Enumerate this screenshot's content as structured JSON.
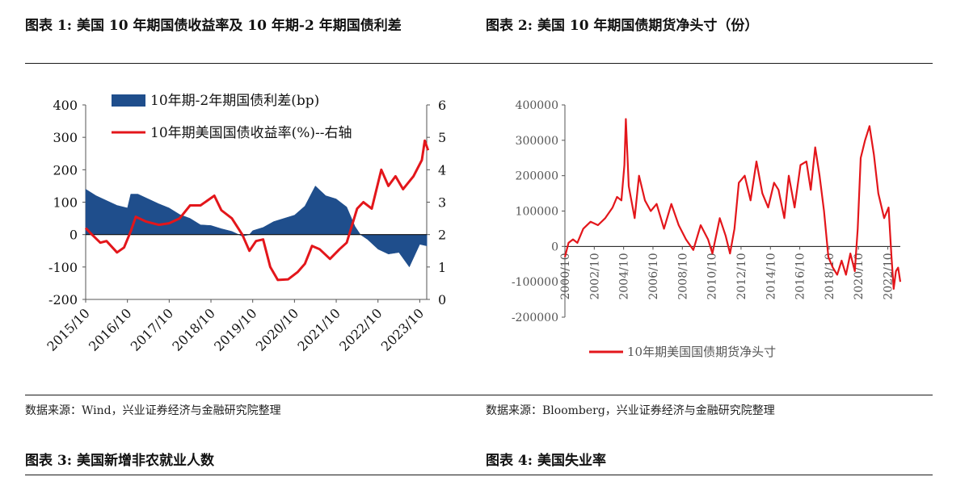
{
  "titles": {
    "fig1": "图表 1:  美国 10 年期国债收益率及 10 年期-2 年期国债利差",
    "fig2": "图表 2:  美国 10 年期国债期货净头寸（份）",
    "fig3": "图表 3:  美国新增非农就业人数",
    "fig4": "图表 4:  美国失业率"
  },
  "sources": {
    "fig1": "数据来源：Wind，兴业证券经济与金融研究院整理",
    "fig2": "数据来源：Bloomberg，兴业证券经济与金融研究院整理"
  },
  "colors": {
    "spread": "#1f4e8c",
    "yield": "#e3161b",
    "position": "#e3161b",
    "axis": "#555555"
  },
  "chart_data": [
    {
      "type": "area+line",
      "title": "美国10年期国债收益率及10年期-2年期国债利差",
      "legend": [
        "10年期-2年期国债利差(bp)",
        "10年期美国国债收益率(%)--右轴"
      ],
      "legend_position": "top-left",
      "x_ticks": [
        "2015/10",
        "2016/10",
        "2017/10",
        "2018/10",
        "2019/10",
        "2020/10",
        "2021/10",
        "2022/10",
        "2023/10"
      ],
      "x_range": [
        "2015-10",
        "2023-12"
      ],
      "ylim_left": [
        -200,
        400
      ],
      "yticks_left": [
        -200,
        -100,
        0,
        100,
        200,
        300,
        400
      ],
      "ylim_right": [
        0,
        6
      ],
      "yticks_right": [
        0,
        1,
        2,
        3,
        4,
        5,
        6
      ],
      "series": [
        {
          "name": "10年期-2年期国债利差(bp)",
          "axis": "left",
          "style": "area",
          "x": [
            2015.75,
            2016.0,
            2016.25,
            2016.5,
            2016.75,
            2016.83,
            2017.0,
            2017.25,
            2017.5,
            2017.75,
            2018.0,
            2018.25,
            2018.5,
            2018.75,
            2019.0,
            2019.25,
            2019.5,
            2019.67,
            2019.75,
            2020.0,
            2020.25,
            2020.5,
            2020.75,
            2021.0,
            2021.25,
            2021.5,
            2021.75,
            2022.0,
            2022.2,
            2022.33,
            2022.5,
            2022.75,
            2023.0,
            2023.25,
            2023.5,
            2023.75,
            2023.92
          ],
          "values": [
            140,
            120,
            105,
            90,
            82,
            125,
            125,
            110,
            95,
            82,
            62,
            50,
            30,
            28,
            18,
            10,
            -5,
            0,
            12,
            22,
            40,
            50,
            60,
            88,
            150,
            120,
            110,
            85,
            25,
            0,
            -15,
            -45,
            -60,
            -55,
            -100,
            -30,
            -35
          ]
        },
        {
          "name": "10年期美国国债收益率(%)--右轴",
          "axis": "right",
          "style": "line",
          "x": [
            2015.75,
            2015.9,
            2016.1,
            2016.25,
            2016.5,
            2016.67,
            2016.83,
            2016.95,
            2017.2,
            2017.5,
            2017.75,
            2018.0,
            2018.25,
            2018.5,
            2018.83,
            2019.0,
            2019.25,
            2019.5,
            2019.67,
            2019.83,
            2020.0,
            2020.17,
            2020.35,
            2020.6,
            2020.83,
            2021.0,
            2021.17,
            2021.35,
            2021.6,
            2021.83,
            2022.0,
            2022.25,
            2022.4,
            2022.6,
            2022.83,
            2023.0,
            2023.17,
            2023.35,
            2023.6,
            2023.8,
            2023.87,
            2023.95
          ],
          "values": [
            2.2,
            2.0,
            1.75,
            1.8,
            1.45,
            1.6,
            2.1,
            2.55,
            2.4,
            2.3,
            2.35,
            2.5,
            2.9,
            2.9,
            3.2,
            2.75,
            2.5,
            2.0,
            1.5,
            1.8,
            1.85,
            1.0,
            0.6,
            0.62,
            0.85,
            1.1,
            1.65,
            1.55,
            1.25,
            1.55,
            1.75,
            2.8,
            3.0,
            2.8,
            4.0,
            3.5,
            3.8,
            3.4,
            3.8,
            4.3,
            4.9,
            4.6
          ]
        }
      ]
    },
    {
      "type": "line",
      "title": "美国10年期国债期货净头寸（份）",
      "legend": [
        "10年期美国国债期货净头寸"
      ],
      "legend_position": "bottom",
      "x_ticks": [
        "2000/10",
        "2002/10",
        "2004/10",
        "2006/10",
        "2008/10",
        "2010/10",
        "2012/10",
        "2014/10",
        "2016/10",
        "2018/10",
        "2020/10",
        "2022/10"
      ],
      "x_range": [
        2000.75,
        2023.6
      ],
      "ylim": [
        -200000,
        400000
      ],
      "yticks": [
        -200000,
        -100000,
        0,
        100000,
        200000,
        300000,
        400000
      ],
      "series": [
        {
          "name": "10年期美国国债期货净头寸",
          "x": [
            2000.75,
            2001.0,
            2001.3,
            2001.6,
            2002.0,
            2002.5,
            2003.0,
            2003.5,
            2004.0,
            2004.3,
            2004.6,
            2004.8,
            2004.9,
            2005.1,
            2005.5,
            2005.8,
            2006.2,
            2006.6,
            2007.0,
            2007.5,
            2008.0,
            2008.5,
            2009.0,
            2009.5,
            2010.0,
            2010.5,
            2010.8,
            2011.3,
            2011.7,
            2012.0,
            2012.3,
            2012.6,
            2013.0,
            2013.4,
            2013.8,
            2014.2,
            2014.6,
            2015.0,
            2015.3,
            2015.7,
            2016.0,
            2016.4,
            2016.8,
            2017.2,
            2017.5,
            2017.8,
            2018.1,
            2018.4,
            2018.7,
            2019.0,
            2019.3,
            2019.6,
            2019.9,
            2020.2,
            2020.5,
            2020.7,
            2020.9,
            2021.2,
            2021.5,
            2021.8,
            2022.1,
            2022.5,
            2022.8,
            2023.0,
            2023.15,
            2023.3,
            2023.45,
            2023.6
          ],
          "values": [
            -30000,
            10000,
            20000,
            10000,
            50000,
            70000,
            60000,
            80000,
            110000,
            140000,
            130000,
            230000,
            360000,
            170000,
            80000,
            200000,
            130000,
            100000,
            120000,
            50000,
            120000,
            60000,
            20000,
            -10000,
            60000,
            20000,
            -20000,
            80000,
            30000,
            -20000,
            50000,
            180000,
            200000,
            130000,
            240000,
            150000,
            110000,
            180000,
            160000,
            80000,
            200000,
            110000,
            230000,
            240000,
            160000,
            280000,
            200000,
            100000,
            -30000,
            -60000,
            -80000,
            -40000,
            -80000,
            -20000,
            -70000,
            50000,
            250000,
            300000,
            340000,
            260000,
            150000,
            80000,
            110000,
            -30000,
            -120000,
            -70000,
            -60000,
            -100000
          ]
        }
      ]
    }
  ]
}
